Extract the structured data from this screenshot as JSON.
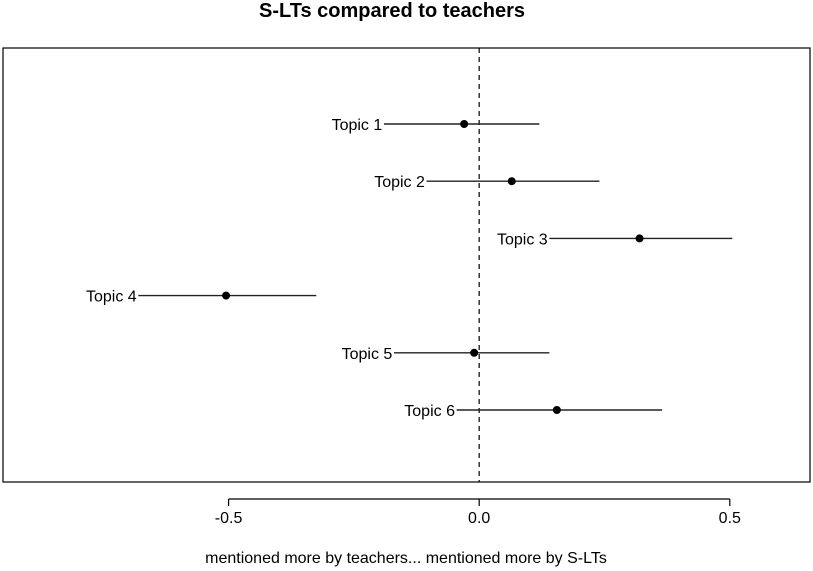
{
  "chart_data": {
    "type": "scatter",
    "title": "S-LTs compared to teachers",
    "xlabel": "mentioned more by teachers... mentioned more by S-LTs",
    "ylabel": "",
    "xlim": [
      -0.95,
      0.66
    ],
    "xticks": [
      -0.5,
      0.0,
      0.5
    ],
    "xtick_labels": [
      "-0.5",
      "0.0",
      "0.5"
    ],
    "reference_line": {
      "x": 0.0,
      "style": "dashed"
    },
    "grid": false,
    "points": [
      {
        "label": "Topic 1",
        "estimate": -0.03,
        "lower": -0.19,
        "upper": 0.12
      },
      {
        "label": "Topic 2",
        "estimate": 0.065,
        "lower": -0.105,
        "upper": 0.24
      },
      {
        "label": "Topic 3",
        "estimate": 0.32,
        "lower": 0.14,
        "upper": 0.505
      },
      {
        "label": "Topic 4",
        "estimate": -0.505,
        "lower": -0.68,
        "upper": -0.325
      },
      {
        "label": "Topic 5",
        "estimate": -0.01,
        "lower": -0.17,
        "upper": 0.14
      },
      {
        "label": "Topic 6",
        "estimate": 0.155,
        "lower": -0.045,
        "upper": 0.365
      }
    ]
  }
}
